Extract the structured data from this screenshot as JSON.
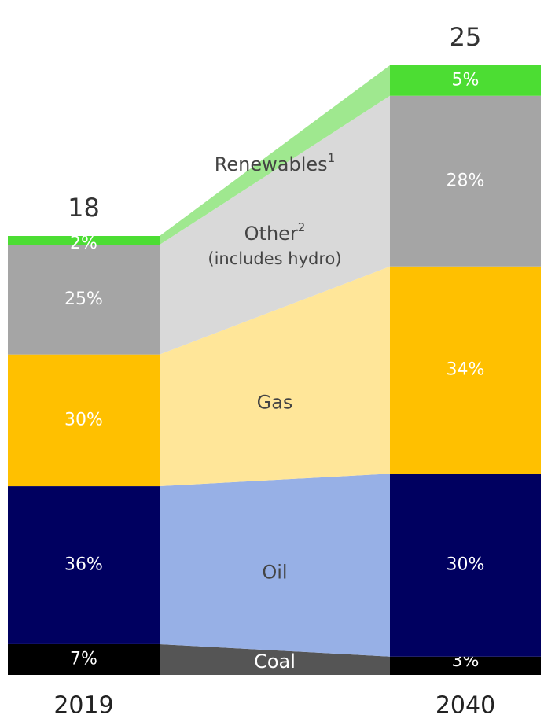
{
  "chart_data": {
    "type": "bar",
    "categories": [
      "2019",
      "2040"
    ],
    "totals": [
      18,
      25
    ],
    "series": [
      {
        "name": "Coal",
        "color": "#000000",
        "band_color": "#555555",
        "values": [
          7,
          3
        ],
        "value_labels": [
          "7%",
          "3%"
        ]
      },
      {
        "name": "Oil",
        "color": "#000060",
        "band_color": "#97b0e6",
        "values": [
          36,
          30
        ],
        "value_labels": [
          "36%",
          "30%"
        ]
      },
      {
        "name": "Gas",
        "color": "#ffc000",
        "band_color": "#ffe699",
        "values": [
          30,
          34
        ],
        "value_labels": [
          "30%",
          "34%"
        ]
      },
      {
        "name": "Other",
        "footnote": "2",
        "sublabel": "(includes hydro)",
        "color": "#a5a5a5",
        "band_color": "#d9d9d9",
        "values": [
          25,
          28
        ],
        "value_labels": [
          "25%",
          "28%"
        ]
      },
      {
        "name": "Renewables",
        "footnote": "1",
        "color": "#4cdd33",
        "band_color": "#9fe88f",
        "values": [
          2,
          5
        ],
        "value_labels": [
          "2%",
          "5%"
        ]
      }
    ]
  }
}
